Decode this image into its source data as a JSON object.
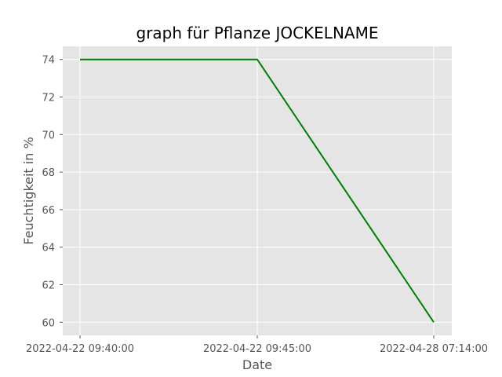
{
  "chart_data": {
    "type": "line",
    "title": "graph für Pflanze JOCKELNAME",
    "xlabel": "Date",
    "ylabel": "Feuchtigkeit in %",
    "x": [
      "2022-04-22 09:40:00",
      "2022-04-22 09:45:00",
      "2022-04-28 07:14:00"
    ],
    "series": [
      {
        "values": [
          74,
          74,
          60
        ],
        "color": "#008000"
      }
    ],
    "yticks": [
      60,
      62,
      64,
      66,
      68,
      70,
      72,
      74
    ],
    "ylim": [
      59.3,
      74.7
    ],
    "grid": true,
    "background": "#e5e5e5",
    "gridColor": "#ffffff"
  }
}
